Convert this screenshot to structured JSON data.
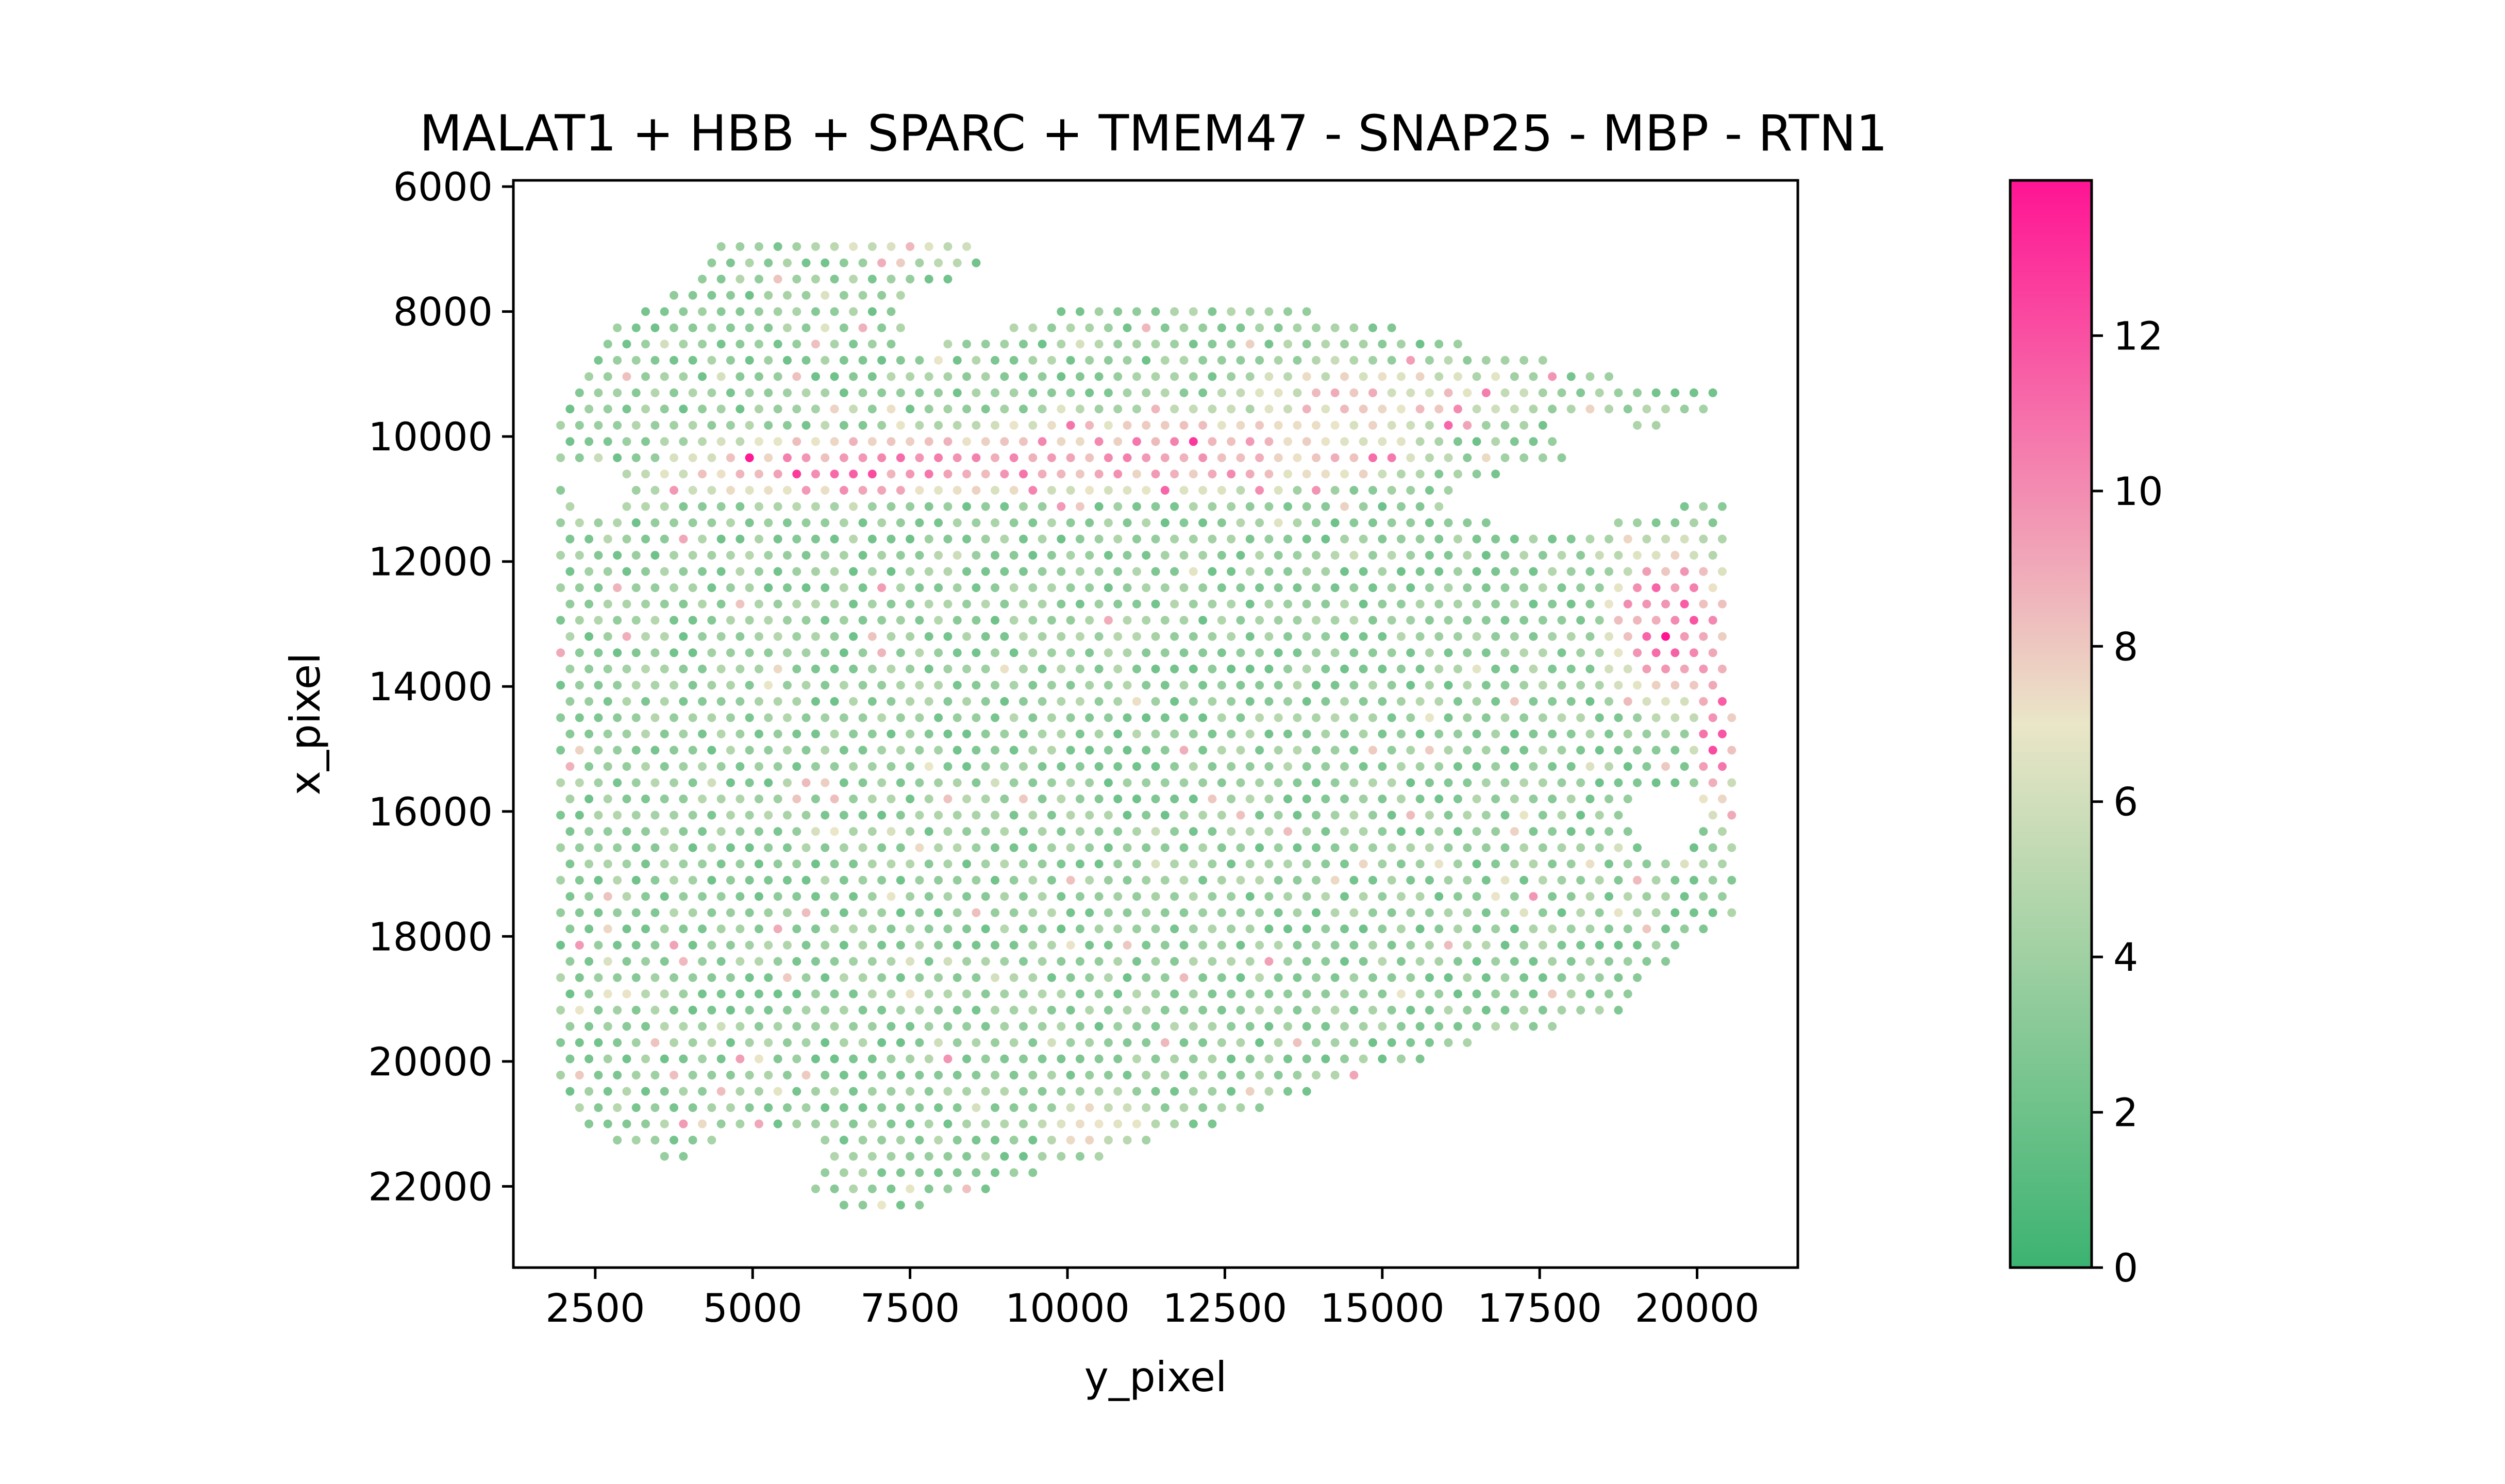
{
  "chart_data": {
    "type": "scatter",
    "title": "MALAT1 + HBB + SPARC + TMEM47 - SNAP25 - MBP - RTN1",
    "xlabel": "y_pixel",
    "ylabel": "x_pixel",
    "xlim": [
      1200,
      21600
    ],
    "ylim": [
      23300,
      5900
    ],
    "y_inverted": true,
    "xticks": [
      2500,
      5000,
      7500,
      10000,
      12500,
      15000,
      17500,
      20000
    ],
    "xtick_labels": [
      "2500",
      "5000",
      "7500",
      "10000",
      "12500",
      "15000",
      "17500",
      "20000"
    ],
    "yticks": [
      6000,
      8000,
      10000,
      12000,
      14000,
      16000,
      18000,
      20000,
      22000
    ],
    "ytick_labels": [
      "6000",
      "8000",
      "10000",
      "12000",
      "14000",
      "16000",
      "18000",
      "20000",
      "22000"
    ],
    "grid": false,
    "colorbar": {
      "range": [
        0,
        14
      ],
      "ticks": [
        0,
        2,
        4,
        6,
        8,
        10,
        12
      ],
      "tick_labels": [
        "0",
        "2",
        "4",
        "6",
        "8",
        "10",
        "12"
      ],
      "colormap": [
        "#3cb371",
        "#eae6c8",
        "#ff1493"
      ]
    },
    "spot_grid": {
      "note": "Visium-style hexagonal spot array; each spot colored by summed score",
      "spot_spacing_x": 300,
      "spot_spacing_y": 260,
      "x_range": [
        1950,
        20550
      ],
      "y_range": [
        6700,
        22500
      ]
    },
    "tissue_outline": [
      [
        1950,
        9700
      ],
      [
        2600,
        8300
      ],
      [
        3500,
        7900
      ],
      [
        4700,
        6700
      ],
      [
        8300,
        6800
      ],
      [
        8700,
        7000
      ],
      [
        8700,
        7300
      ],
      [
        7400,
        7800
      ],
      [
        7400,
        8700
      ],
      [
        10500,
        7800
      ],
      [
        13500,
        7900
      ],
      [
        16000,
        8400
      ],
      [
        19300,
        9200
      ],
      [
        20500,
        9300
      ],
      [
        20500,
        9700
      ],
      [
        19500,
        9800
      ],
      [
        16200,
        10900
      ],
      [
        16000,
        11200
      ],
      [
        17000,
        11400
      ],
      [
        18200,
        11500
      ],
      [
        19200,
        11200
      ],
      [
        20500,
        11000
      ],
      [
        20600,
        17800
      ],
      [
        19800,
        18100
      ],
      [
        18800,
        19300
      ],
      [
        17000,
        19600
      ],
      [
        15500,
        20000
      ],
      [
        12500,
        21000
      ],
      [
        9500,
        21800
      ],
      [
        8300,
        22200
      ],
      [
        7000,
        22500
      ],
      [
        6300,
        22300
      ],
      [
        5800,
        22000
      ],
      [
        6300,
        21500
      ],
      [
        5800,
        21200
      ],
      [
        4700,
        21000
      ],
      [
        4300,
        21400
      ],
      [
        3800,
        21600
      ],
      [
        2200,
        21100
      ],
      [
        1950,
        20700
      ]
    ],
    "exclusion_zones": [
      {
        "center": [
          2500,
          10800
        ],
        "r": [
          550,
          450
        ]
      },
      {
        "center": [
          18300,
          9850
        ],
        "r": [
          650,
          280
        ]
      },
      {
        "center": [
          19500,
          16200
        ],
        "r": [
          550,
          500
        ]
      },
      {
        "center": [
          5000,
          21500
        ],
        "r": [
          500,
          400
        ]
      },
      {
        "center": [
          20400,
          9700
        ],
        "r": [
          250,
          250
        ]
      }
    ],
    "high_value_regions": [
      {
        "center": [
          6500,
          10500
        ],
        "r": [
          3600,
          700
        ],
        "value": 10.5
      },
      {
        "center": [
          11500,
          10300
        ],
        "r": [
          4800,
          800
        ],
        "value": 10.0
      },
      {
        "center": [
          19600,
          13000
        ],
        "r": [
          1300,
          1600
        ],
        "value": 11.0
      },
      {
        "center": [
          20300,
          14800
        ],
        "r": [
          400,
          1800
        ],
        "value": 11.5
      },
      {
        "center": [
          15000,
          9400
        ],
        "r": [
          3000,
          700
        ],
        "value": 8.0
      },
      {
        "center": [
          10500,
          21000
        ],
        "r": [
          1000,
          600
        ],
        "value": 7.5
      },
      {
        "center": [
          7500,
          6900
        ],
        "r": [
          1800,
          400
        ],
        "value": 7.0
      }
    ],
    "background_value": 3.5
  }
}
